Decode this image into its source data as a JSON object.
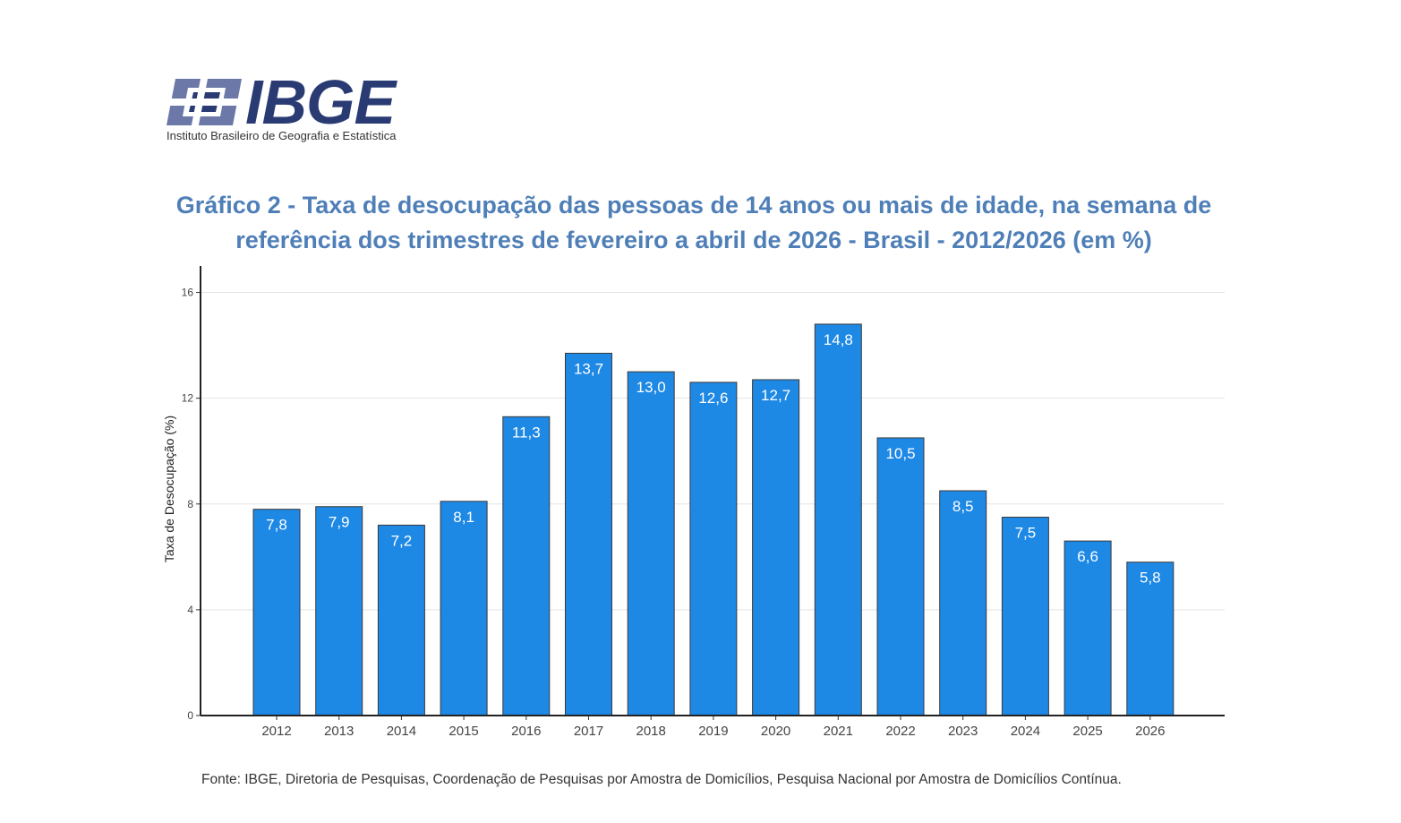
{
  "logo": {
    "name": "IBGE",
    "subtitle": "Instituto Brasileiro de Geografia e Estatística"
  },
  "header": {
    "title_line1": "Gráfico 2 - Taxa de desocupação das pessoas de 14 anos ou mais de idade, na semana de",
    "title_line2": "referência dos trimestres de fevereiro a abril de 2026 - Brasil - 2012/2026 (em %)"
  },
  "footer": {
    "source": "Fonte: IBGE, Diretoria de Pesquisas, Coordenação de Pesquisas por Amostra de Domicílios, Pesquisa Nacional por Amostra de Domicílios Contínua."
  },
  "colors": {
    "bar": "#1e88e5",
    "bar_stroke": "#3a3a3a",
    "title": "#4f7fb7",
    "logo": "#2a3b74"
  },
  "chart_data": {
    "type": "bar",
    "title": "Gráfico 2 - Taxa de desocupação das pessoas de 14 anos ou mais de idade, na semana de referência dos trimestres de fevereiro a abril de 2026 - Brasil - 2012/2026 (em %)",
    "xlabel": "",
    "ylabel": "Taxa de Desocupação (%)",
    "categories": [
      "2012",
      "2013",
      "2014",
      "2015",
      "2016",
      "2017",
      "2018",
      "2019",
      "2020",
      "2021",
      "2022",
      "2023",
      "2024",
      "2025",
      "2026"
    ],
    "values": [
      7.8,
      7.9,
      7.2,
      8.1,
      11.3,
      13.7,
      13.0,
      12.6,
      12.7,
      14.8,
      10.5,
      8.5,
      7.5,
      6.6,
      5.8
    ],
    "data_labels": [
      "7,8",
      "7,9",
      "7,2",
      "8,1",
      "11,3",
      "13,7",
      "13,0",
      "12,6",
      "12,7",
      "14,8",
      "10,5",
      "8,5",
      "7,5",
      "6,6",
      "5,8"
    ],
    "yticks": [
      0,
      4,
      8,
      12,
      16
    ],
    "ylim": [
      0,
      17
    ],
    "grid": true,
    "legend": "none"
  }
}
